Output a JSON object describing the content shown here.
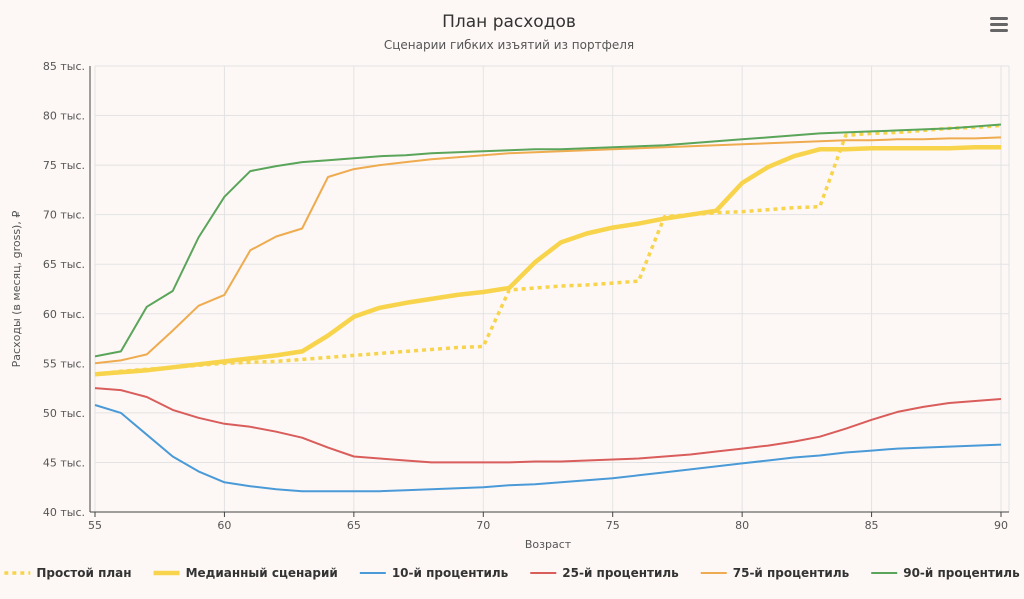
{
  "menu_icon": "hamburger-menu-icon",
  "chart_data": {
    "type": "line",
    "title": "План расходов",
    "subtitle": "Сценарии гибких изъятий из портфеля",
    "xlabel": "Возраст",
    "ylabel": "Расходы (в месяц, gross), ₽",
    "xlim": [
      55,
      90
    ],
    "ylim": [
      40000,
      85000
    ],
    "x_ticks": [
      "55",
      "60",
      "65",
      "70",
      "75",
      "80",
      "85",
      "90"
    ],
    "y_ticks": [
      "40 тыс.",
      "45 тыс.",
      "50 тыс.",
      "55 тыс.",
      "60 тыс.",
      "65 тыс.",
      "70 тыс.",
      "75 тыс.",
      "80 тыс.",
      "85 тыс."
    ],
    "legend_position": "bottom",
    "x": [
      55,
      56,
      57,
      58,
      59,
      60,
      61,
      62,
      63,
      64,
      65,
      66,
      67,
      68,
      69,
      70,
      71,
      72,
      73,
      74,
      75,
      76,
      77,
      78,
      79,
      80,
      81,
      82,
      83,
      84,
      85,
      86,
      87,
      88,
      89,
      90
    ],
    "series": [
      {
        "name": "Простой план",
        "color": "#f7d44c",
        "style": "dotted",
        "values": [
          53900,
          54200,
          54400,
          54600,
          54800,
          55000,
          55100,
          55200,
          55400,
          55600,
          55800,
          56000,
          56200,
          56400,
          56600,
          56700,
          62400,
          62600,
          62800,
          62900,
          63100,
          63300,
          69800,
          70000,
          70200,
          70300,
          70500,
          70700,
          70800,
          78000,
          78200,
          78300,
          78500,
          78700,
          78800,
          79000
        ]
      },
      {
        "name": "Медианный сценарий",
        "color": "#f7d44c",
        "style": "thick",
        "values": [
          53900,
          54100,
          54300,
          54600,
          54900,
          55200,
          55500,
          55800,
          56200,
          57800,
          59700,
          60600,
          61100,
          61500,
          61900,
          62200,
          62600,
          65200,
          67200,
          68100,
          68700,
          69100,
          69600,
          70000,
          70400,
          73200,
          74800,
          75900,
          76600,
          76600,
          76700,
          76700,
          76700,
          76700,
          76800,
          76800
        ]
      },
      {
        "name": "10-й процентиль",
        "color": "#4a9ad8",
        "style": "solid",
        "values": [
          50800,
          50000,
          47800,
          45600,
          44100,
          43000,
          42600,
          42300,
          42100,
          42100,
          42100,
          42100,
          42200,
          42300,
          42400,
          42500,
          42700,
          42800,
          43000,
          43200,
          43400,
          43700,
          44000,
          44300,
          44600,
          44900,
          45200,
          45500,
          45700,
          46000,
          46200,
          46400,
          46500,
          46600,
          46700,
          46800
        ]
      },
      {
        "name": "25-й процентиль",
        "color": "#d95d5b",
        "style": "solid",
        "values": [
          52500,
          52300,
          51600,
          50300,
          49500,
          48900,
          48600,
          48100,
          47500,
          46500,
          45600,
          45400,
          45200,
          45000,
          45000,
          45000,
          45000,
          45100,
          45100,
          45200,
          45300,
          45400,
          45600,
          45800,
          46100,
          46400,
          46700,
          47100,
          47600,
          48400,
          49300,
          50100,
          50600,
          51000,
          51200,
          51400
        ]
      },
      {
        "name": "75-й процентиль",
        "color": "#efab4f",
        "style": "solid",
        "values": [
          55000,
          55300,
          55900,
          58300,
          60800,
          61900,
          66400,
          67800,
          68600,
          73800,
          74600,
          75000,
          75300,
          75600,
          75800,
          76000,
          76200,
          76300,
          76400,
          76500,
          76600,
          76700,
          76800,
          76900,
          77000,
          77100,
          77200,
          77300,
          77400,
          77500,
          77500,
          77600,
          77600,
          77700,
          77700,
          77800
        ]
      },
      {
        "name": "90-й процентиль",
        "color": "#5aa55a",
        "style": "solid",
        "values": [
          55700,
          56200,
          60700,
          62300,
          67700,
          71800,
          74400,
          74900,
          75300,
          75500,
          75700,
          75900,
          76000,
          76200,
          76300,
          76400,
          76500,
          76600,
          76600,
          76700,
          76800,
          76900,
          77000,
          77200,
          77400,
          77600,
          77800,
          78000,
          78200,
          78300,
          78400,
          78500,
          78600,
          78700,
          78900,
          79100
        ]
      }
    ]
  }
}
